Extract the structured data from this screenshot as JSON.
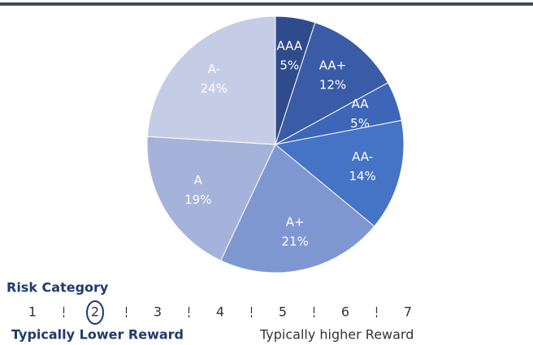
{
  "chart_data": {
    "type": "pie",
    "categories": [
      "AAA",
      "AA+",
      "AA",
      "AA-",
      "A+",
      "A",
      "A-"
    ],
    "values": [
      5,
      12,
      5,
      14,
      21,
      19,
      24
    ],
    "value_labels": [
      "5%",
      "12%",
      "5%",
      "14%",
      "21%",
      "19%",
      "24%"
    ],
    "colors": [
      "#2f4b8c",
      "#3a5ba6",
      "#3e66b8",
      "#4573c5",
      "#7f97d1",
      "#a5b3db",
      "#c5cde6"
    ]
  },
  "risk_scale": {
    "title": "Risk Category",
    "levels": [
      1,
      2,
      3,
      4,
      5,
      6,
      7
    ],
    "selected": 2,
    "low_label": "Typically Lower Reward",
    "high_label": "Typically higher Reward"
  }
}
